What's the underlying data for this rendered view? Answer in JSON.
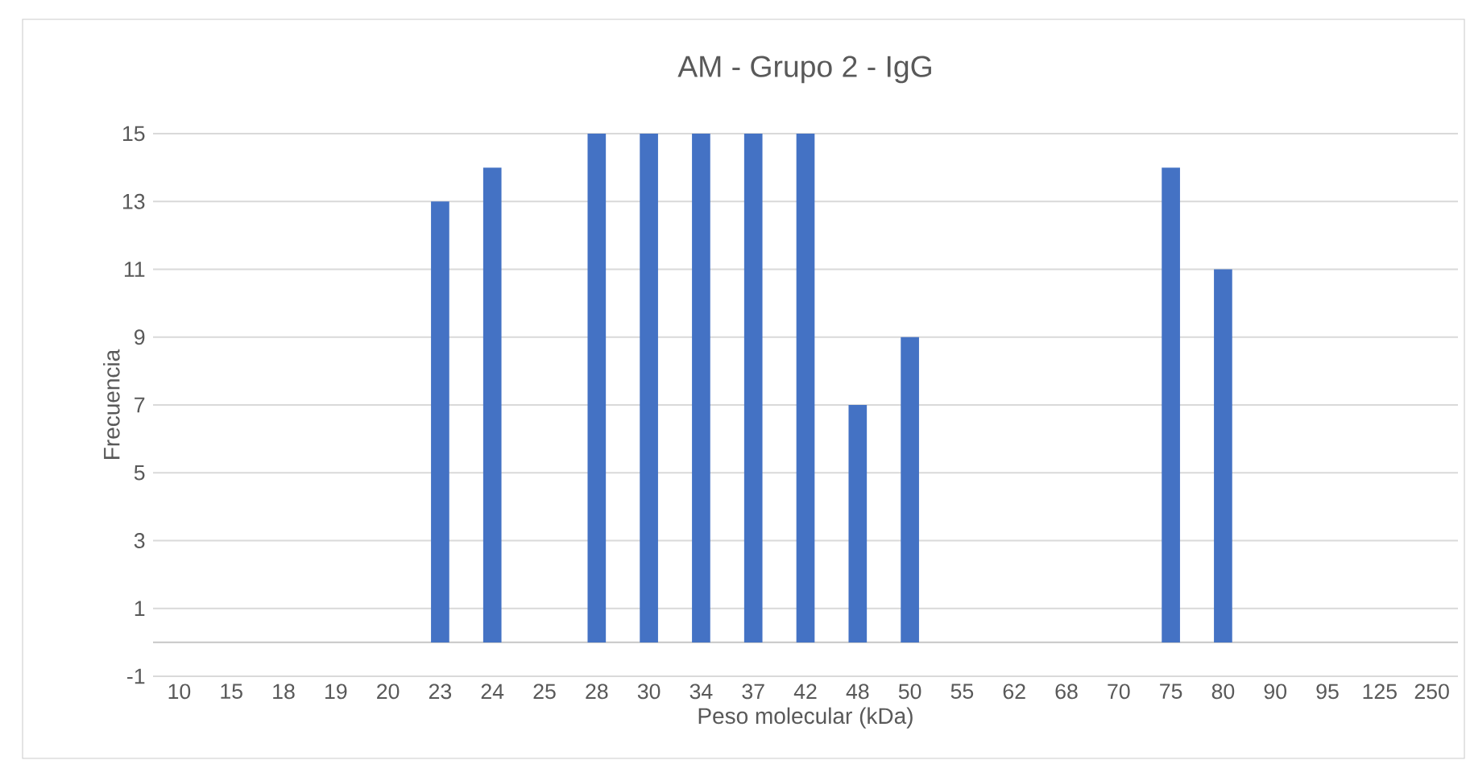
{
  "chart_data": {
    "type": "bar",
    "title": "AM - Grupo 2 - IgG",
    "xlabel": "Peso molecular (kDa)",
    "ylabel": "Frecuencia",
    "categories": [
      "10",
      "15",
      "18",
      "19",
      "20",
      "23",
      "24",
      "25",
      "28",
      "30",
      "34",
      "37",
      "42",
      "48",
      "50",
      "55",
      "62",
      "68",
      "70",
      "75",
      "80",
      "90",
      "95",
      "125",
      "250"
    ],
    "values": [
      0,
      0,
      0,
      0,
      0,
      13,
      14,
      0,
      15,
      15,
      15,
      15,
      15,
      7,
      9,
      0,
      0,
      0,
      0,
      14,
      11,
      0,
      0,
      0,
      0
    ],
    "color": "#4472c4",
    "ylim": [
      -1,
      15
    ],
    "yticks": [
      -1,
      1,
      3,
      5,
      7,
      9,
      11,
      13,
      15
    ],
    "grid": "y"
  }
}
